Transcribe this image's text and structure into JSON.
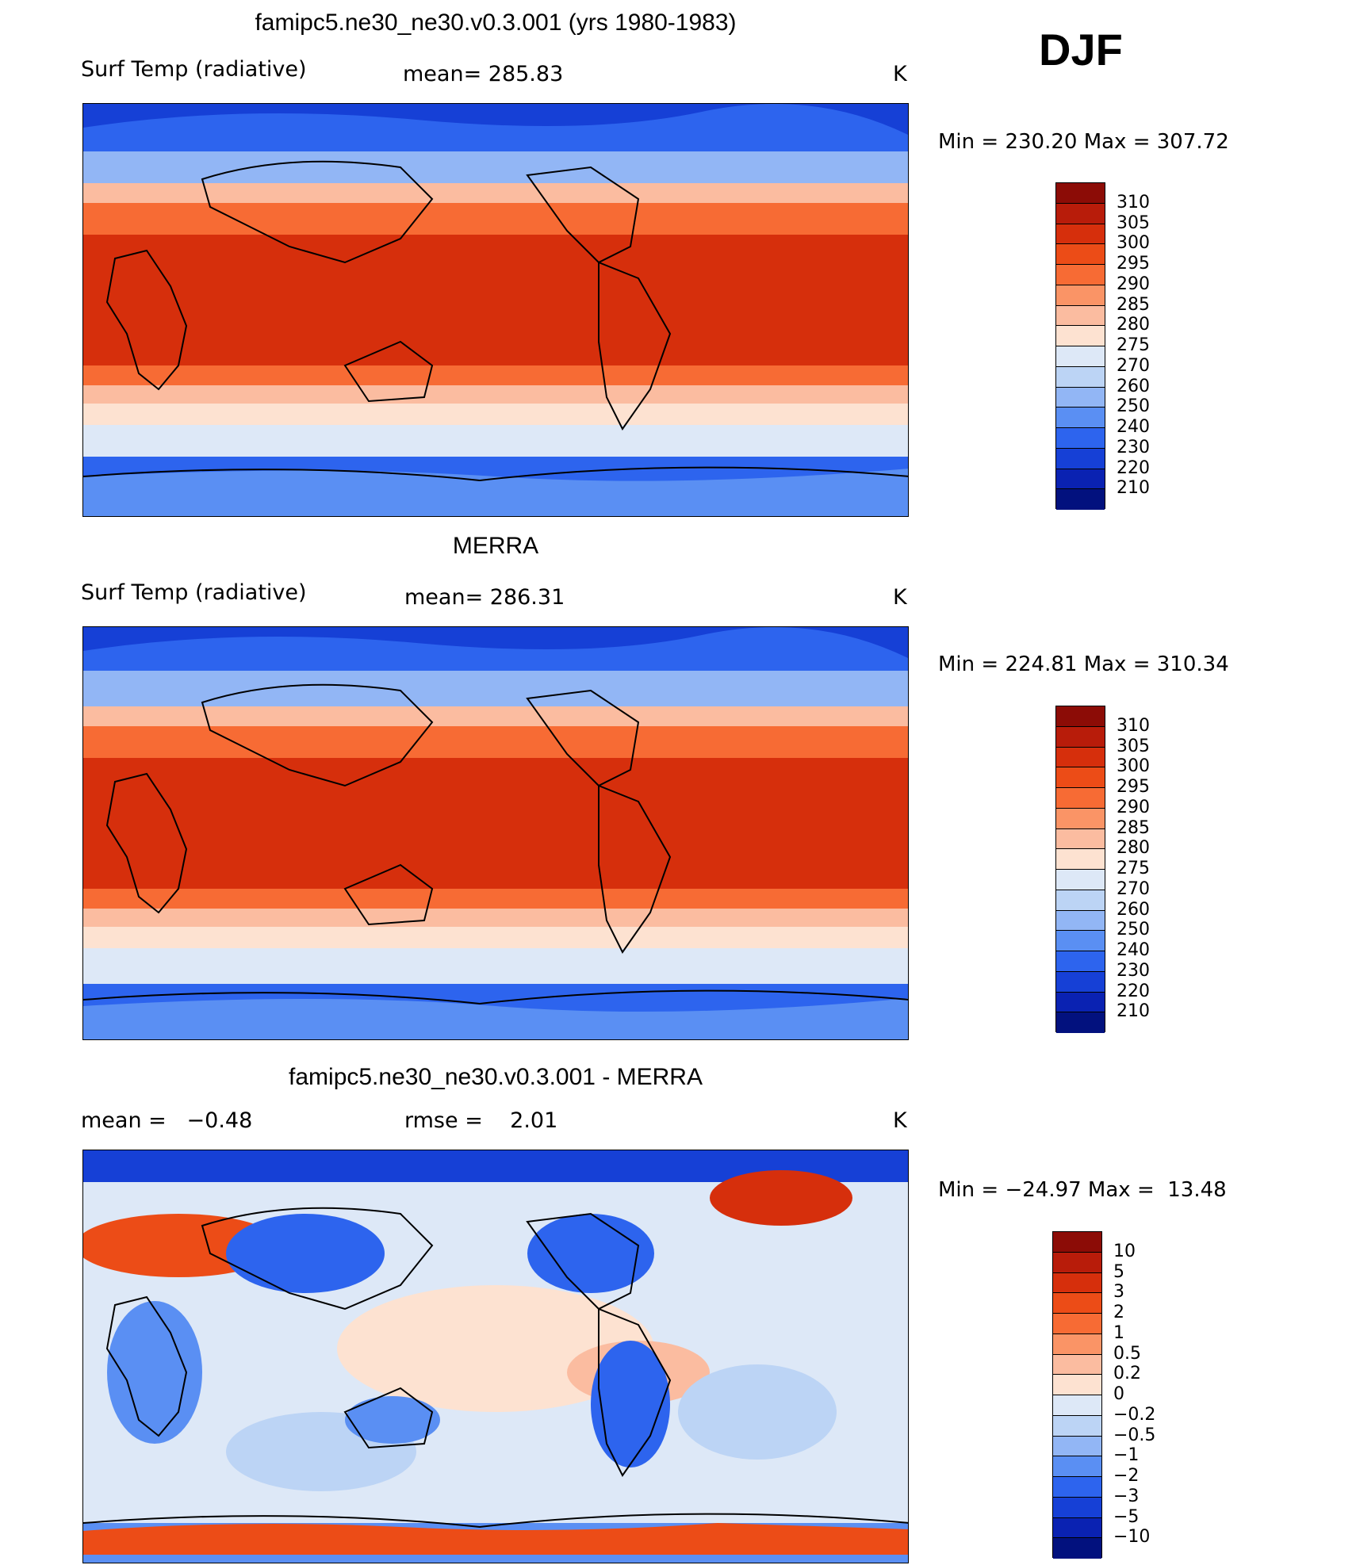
{
  "season": "DJF",
  "units": "K",
  "panels": [
    {
      "id": "model",
      "title": "famipc5.ne30_ne30.v0.3.001 (yrs 1980-1983)",
      "left_label": "Surf Temp (radiative)",
      "center_label": "mean= 285.83",
      "units": "K",
      "minmax": "Min = 230.20 Max = 307.72",
      "colorbar": {
        "labels": [
          "310",
          "305",
          "300",
          "295",
          "290",
          "285",
          "280",
          "275",
          "270",
          "260",
          "250",
          "240",
          "230",
          "220",
          "210"
        ],
        "colors": [
          "#8c0c06",
          "#b81c0a",
          "#d62f0c",
          "#ec4c17",
          "#f76b34",
          "#fa9466",
          "#fbbca0",
          "#fde2d1",
          "#dde8f7",
          "#bcd4f5",
          "#92b6f5",
          "#5a8ff3",
          "#2d64ee",
          "#1640d6",
          "#0a22b2",
          "#02117e"
        ]
      }
    },
    {
      "id": "obs",
      "title": "MERRA",
      "left_label": "Surf Temp (radiative)",
      "center_label": "mean= 286.31",
      "units": "K",
      "minmax": "Min = 224.81 Max = 310.34",
      "colorbar": {
        "labels": [
          "310",
          "305",
          "300",
          "295",
          "290",
          "285",
          "280",
          "275",
          "270",
          "260",
          "250",
          "240",
          "230",
          "220",
          "210"
        ],
        "colors": [
          "#8c0c06",
          "#b81c0a",
          "#d62f0c",
          "#ec4c17",
          "#f76b34",
          "#fa9466",
          "#fbbca0",
          "#fde2d1",
          "#dde8f7",
          "#bcd4f5",
          "#92b6f5",
          "#5a8ff3",
          "#2d64ee",
          "#1640d6",
          "#0a22b2",
          "#02117e"
        ]
      }
    },
    {
      "id": "diff",
      "title": "famipc5.ne30_ne30.v0.3.001 - MERRA",
      "left_label": "mean =   −0.48",
      "center_label": "rmse =    2.01",
      "units": "K",
      "minmax": "Min = −24.97 Max =  13.48",
      "colorbar": {
        "labels": [
          "10",
          "5",
          "3",
          "2",
          "1",
          "0.5",
          "0.2",
          "0",
          "−0.2",
          "−0.5",
          "−1",
          "−2",
          "−3",
          "−5",
          "−10"
        ],
        "colors": [
          "#8c0c06",
          "#b81c0a",
          "#d62f0c",
          "#ec4c17",
          "#f76b34",
          "#fa9466",
          "#fbbca0",
          "#fde2d1",
          "#dde8f7",
          "#bcd4f5",
          "#92b6f5",
          "#5a8ff3",
          "#2d64ee",
          "#1640d6",
          "#0a22b2",
          "#02117e"
        ]
      }
    }
  ]
}
